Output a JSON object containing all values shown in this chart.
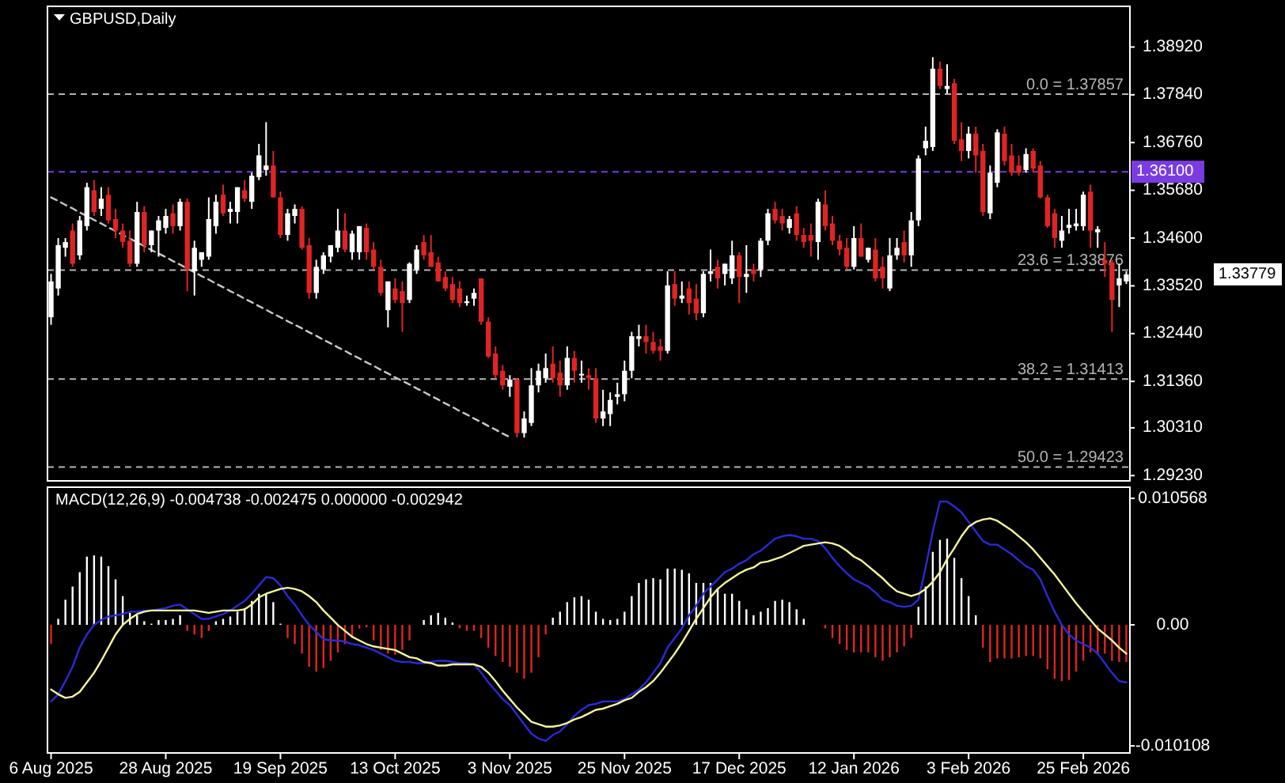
{
  "chart_data": [
    {
      "type": "candlestick",
      "title": "GBPUSD,Daily",
      "tick_labels": "y",
      "categories": [
        null,
        null,
        null,
        null,
        null,
        null,
        null,
        null,
        null,
        null,
        null,
        null,
        null,
        null,
        null,
        null,
        null,
        null,
        null,
        null,
        null,
        null,
        null,
        null,
        null,
        null,
        null,
        null,
        null,
        null,
        null,
        null,
        null,
        null,
        null,
        null,
        null,
        null,
        null,
        null,
        null,
        null,
        null,
        null,
        null,
        null,
        null,
        null,
        null,
        null,
        null,
        null,
        null,
        null,
        null,
        null,
        null,
        null,
        null,
        null,
        null,
        null,
        null,
        null,
        null,
        null,
        null,
        null,
        null,
        null,
        null,
        null,
        null,
        null,
        null,
        null,
        null,
        null,
        null,
        null,
        null,
        null,
        null,
        null,
        null,
        null,
        null,
        null,
        null,
        null,
        null,
        null,
        null,
        null,
        null,
        null,
        null,
        null,
        null,
        null,
        null,
        null,
        null,
        null,
        null,
        null,
        null,
        null,
        null,
        null,
        null,
        null,
        null,
        null,
        null,
        null,
        null,
        null,
        null,
        null,
        null,
        null,
        null,
        null,
        null,
        null,
        null,
        null,
        null,
        null,
        null,
        null,
        null,
        null,
        null,
        null,
        null,
        null,
        null,
        null,
        null,
        null,
        null,
        null,
        null,
        null,
        null,
        null,
        null,
        null,
        null
      ],
      "ohlc": [
        [
          1.3281,
          1.3379,
          1.3264,
          1.3362
        ],
        [
          1.3346,
          1.346,
          1.333,
          1.3444
        ],
        [
          1.3438,
          1.346,
          1.3418,
          1.3451
        ],
        [
          1.3477,
          1.3493,
          1.3395,
          1.3402
        ],
        [
          1.3421,
          1.351,
          1.3411,
          1.35
        ],
        [
          1.3487,
          1.3585,
          1.3477,
          1.3575
        ],
        [
          1.3568,
          1.3591,
          1.351,
          1.3519
        ],
        [
          1.3526,
          1.3575,
          1.351,
          1.3549
        ],
        [
          1.3558,
          1.3575,
          1.3493,
          1.35
        ],
        [
          1.3503,
          1.3526,
          1.346,
          1.3477
        ],
        [
          1.3477,
          1.3493,
          1.3438,
          1.3451
        ],
        [
          1.3454,
          1.3477,
          1.3395,
          1.3402
        ],
        [
          1.3402,
          1.3542,
          1.3395,
          1.3519
        ],
        [
          1.3519,
          1.3532,
          1.3428,
          1.3444
        ],
        [
          1.3444,
          1.3477,
          1.3428,
          1.3477
        ],
        [
          1.3477,
          1.351,
          1.3418,
          1.35
        ],
        [
          1.3483,
          1.3526,
          1.347,
          1.351
        ],
        [
          1.3516,
          1.3536,
          1.347,
          1.3487
        ],
        [
          1.3487,
          1.3549,
          1.3477,
          1.3542
        ],
        [
          1.3542,
          1.3549,
          1.334,
          1.3389
        ],
        [
          1.3385,
          1.3454,
          1.333,
          1.3438
        ],
        [
          1.3411,
          1.3428,
          1.3395,
          1.3428
        ],
        [
          1.3418,
          1.3552,
          1.3411,
          1.3503
        ],
        [
          1.3487,
          1.3558,
          1.347,
          1.3542
        ],
        [
          1.3558,
          1.3581,
          1.351,
          1.3516
        ],
        [
          1.3519,
          1.3542,
          1.3493,
          1.3526
        ],
        [
          1.3519,
          1.3575,
          1.3493,
          1.3575
        ],
        [
          1.3568,
          1.3591,
          1.3542,
          1.3549
        ],
        [
          1.3542,
          1.3608,
          1.3526,
          1.3601
        ],
        [
          1.3598,
          1.3673,
          1.3591,
          1.3647
        ],
        [
          1.3614,
          1.3722,
          1.3601,
          1.3624
        ],
        [
          1.3624,
          1.3657,
          1.3552,
          1.3552
        ],
        [
          1.3552,
          1.3565,
          1.346,
          1.3467
        ],
        [
          1.3467,
          1.3526,
          1.3454,
          1.3516
        ],
        [
          1.351,
          1.3536,
          1.3493,
          1.3526
        ],
        [
          1.3526,
          1.3532,
          1.3434,
          1.3438
        ],
        [
          1.3444,
          1.346,
          1.3323,
          1.3336
        ],
        [
          1.3336,
          1.3411,
          1.3323,
          1.3395
        ],
        [
          1.3389,
          1.3428,
          1.3379,
          1.3421
        ],
        [
          1.3418,
          1.3444,
          1.3405,
          1.3444
        ],
        [
          1.3438,
          1.3526,
          1.3428,
          1.3477
        ],
        [
          1.3477,
          1.3516,
          1.3428,
          1.3434
        ],
        [
          1.3428,
          1.3477,
          1.3411,
          1.347
        ],
        [
          1.3428,
          1.3487,
          1.3411,
          1.3487
        ],
        [
          1.3483,
          1.3493,
          1.3411,
          1.3428
        ],
        [
          1.3434,
          1.3451,
          1.3389,
          1.3395
        ],
        [
          1.3395,
          1.3411,
          1.333,
          1.3336
        ],
        [
          1.3297,
          1.3362,
          1.3258,
          1.3362
        ],
        [
          1.3346,
          1.3369,
          1.3313,
          1.332
        ],
        [
          1.334,
          1.3362,
          1.3248,
          1.3313
        ],
        [
          1.332,
          1.3405,
          1.3313,
          1.3402
        ],
        [
          1.3389,
          1.3444,
          1.3379,
          1.3434
        ],
        [
          1.3451,
          1.3467,
          1.3411,
          1.3421
        ],
        [
          1.3428,
          1.3467,
          1.3395,
          1.3395
        ],
        [
          1.3405,
          1.3418,
          1.3362,
          1.3362
        ],
        [
          1.3372,
          1.3385,
          1.334,
          1.3346
        ],
        [
          1.3356,
          1.3372,
          1.3313,
          1.332
        ],
        [
          1.3346,
          1.3362,
          1.3304,
          1.3313
        ],
        [
          1.3313,
          1.333,
          1.3307,
          1.3317
        ],
        [
          1.3323,
          1.3346,
          1.3307,
          1.3336
        ],
        [
          1.3369,
          1.3369,
          1.3264,
          1.3271
        ],
        [
          1.3271,
          1.3281,
          1.3189,
          1.3192
        ],
        [
          1.3199,
          1.3215,
          1.3143,
          1.315
        ],
        [
          1.316,
          1.3173,
          1.3117,
          1.3127
        ],
        [
          1.3124,
          1.315,
          1.3101,
          1.314
        ],
        [
          1.314,
          1.3143,
          1.3009,
          1.3019
        ],
        [
          1.3019,
          1.3068,
          1.3009,
          1.3052
        ],
        [
          1.3042,
          1.3166,
          1.3035,
          1.3127
        ],
        [
          1.3127,
          1.3176,
          1.3111,
          1.316
        ],
        [
          1.3143,
          1.3199,
          1.3133,
          1.3166
        ],
        [
          1.3176,
          1.3215,
          1.3133,
          1.3143
        ],
        [
          1.3156,
          1.3183,
          1.3101,
          1.3127
        ],
        [
          1.3127,
          1.3215,
          1.3117,
          1.3189
        ],
        [
          1.3189,
          1.3205,
          1.3133,
          1.316
        ],
        [
          1.315,
          1.3183,
          1.3133,
          1.3153
        ],
        [
          1.315,
          1.3166,
          1.3117,
          1.3143
        ],
        [
          1.3143,
          1.3166,
          1.3042,
          1.3052
        ],
        [
          1.3052,
          1.3117,
          1.3035,
          1.3068
        ],
        [
          1.3062,
          1.3111,
          1.3035,
          1.3094
        ],
        [
          1.3101,
          1.3133,
          1.3084,
          1.3107
        ],
        [
          1.3107,
          1.3183,
          1.3091,
          1.316
        ],
        [
          1.316,
          1.3248,
          1.3143,
          1.3238
        ],
        [
          1.3232,
          1.3264,
          1.3215,
          1.3238
        ],
        [
          1.3238,
          1.3264,
          1.3199,
          1.3225
        ],
        [
          1.3225,
          1.3248,
          1.3199,
          1.3205
        ],
        [
          1.3215,
          1.3232,
          1.3183,
          1.3205
        ],
        [
          1.3205,
          1.3385,
          1.3199,
          1.3353
        ],
        [
          1.3356,
          1.3385,
          1.3307,
          1.3323
        ],
        [
          1.3323,
          1.3362,
          1.3313,
          1.333
        ],
        [
          1.3346,
          1.3362,
          1.3287,
          1.3313
        ],
        [
          1.3323,
          1.3356,
          1.3274,
          1.329
        ],
        [
          1.329,
          1.3385,
          1.3281,
          1.3379
        ],
        [
          1.3379,
          1.3434,
          1.3362,
          1.3385
        ],
        [
          1.3395,
          1.3411,
          1.3346,
          1.3369
        ],
        [
          1.3379,
          1.3402,
          1.3353,
          1.3402
        ],
        [
          1.3369,
          1.3454,
          1.3356,
          1.3421
        ],
        [
          1.3421,
          1.3428,
          1.3313,
          1.3372
        ],
        [
          1.3372,
          1.3444,
          1.3336,
          1.3379
        ],
        [
          1.3389,
          1.3402,
          1.3362,
          1.3379
        ],
        [
          1.3389,
          1.346,
          1.3372,
          1.3454
        ],
        [
          1.3454,
          1.3526,
          1.3444,
          1.3516
        ],
        [
          1.3526,
          1.3542,
          1.3493,
          1.35
        ],
        [
          1.351,
          1.3526,
          1.3477,
          1.3493
        ],
        [
          1.3483,
          1.351,
          1.347,
          1.3503
        ],
        [
          1.3516,
          1.3532,
          1.3454,
          1.3467
        ],
        [
          1.3467,
          1.3483,
          1.3438,
          1.3451
        ],
        [
          1.3467,
          1.3493,
          1.3418,
          1.3454
        ],
        [
          1.3451,
          1.3549,
          1.3411,
          1.3542
        ],
        [
          1.3536,
          1.3568,
          1.3477,
          1.3487
        ],
        [
          1.3493,
          1.351,
          1.3444,
          1.3454
        ],
        [
          1.3454,
          1.3467,
          1.3421,
          1.3434
        ],
        [
          1.3438,
          1.346,
          1.3389,
          1.3395
        ],
        [
          1.3395,
          1.3487,
          1.3389,
          1.346
        ],
        [
          1.346,
          1.3493,
          1.3418,
          1.3418
        ],
        [
          1.3411,
          1.3438,
          1.3405,
          1.3438
        ],
        [
          1.3434,
          1.346,
          1.3362,
          1.3369
        ],
        [
          1.3395,
          1.3418,
          1.3346,
          1.3369
        ],
        [
          1.3346,
          1.346,
          1.334,
          1.3421
        ],
        [
          1.3421,
          1.346,
          1.3411,
          1.3438
        ],
        [
          1.3451,
          1.3477,
          1.3405,
          1.3421
        ],
        [
          1.3421,
          1.3519,
          1.3395,
          1.35
        ],
        [
          1.35,
          1.3647,
          1.3487,
          1.364
        ],
        [
          1.3663,
          1.3712,
          1.3647,
          1.368
        ],
        [
          1.3666,
          1.3869,
          1.3657,
          1.3843
        ],
        [
          1.3843,
          1.3859,
          1.3797,
          1.3804
        ],
        [
          1.3797,
          1.3853,
          1.3787,
          1.3804
        ],
        [
          1.381,
          1.382,
          1.3673,
          1.368
        ],
        [
          1.3683,
          1.3722,
          1.3634,
          1.3657
        ],
        [
          1.3657,
          1.3712,
          1.364,
          1.3696
        ],
        [
          1.3696,
          1.3712,
          1.3608,
          1.3647
        ],
        [
          1.3657,
          1.3673,
          1.351,
          1.3519
        ],
        [
          1.3516,
          1.3624,
          1.3503,
          1.3608
        ],
        [
          1.3585,
          1.3706,
          1.3575,
          1.3699
        ],
        [
          1.3696,
          1.3712,
          1.3624,
          1.3634
        ],
        [
          1.3647,
          1.3673,
          1.3601,
          1.3608
        ],
        [
          1.3624,
          1.3647,
          1.3601,
          1.3608
        ],
        [
          1.3614,
          1.3663,
          1.3608,
          1.365
        ],
        [
          1.3657,
          1.3663,
          1.3608,
          1.3617
        ],
        [
          1.3624,
          1.3634,
          1.3549,
          1.3552
        ],
        [
          1.3552,
          1.3558,
          1.3483,
          1.3487
        ],
        [
          1.3516,
          1.3526,
          1.3438,
          1.346
        ],
        [
          1.3454,
          1.351,
          1.3438,
          1.3477
        ],
        [
          1.3483,
          1.3526,
          1.347,
          1.349
        ],
        [
          1.3487,
          1.3526,
          1.3477,
          1.3493
        ],
        [
          1.3487,
          1.3565,
          1.3477,
          1.3558
        ],
        [
          1.3565,
          1.3581,
          1.3438,
          1.3477
        ],
        [
          1.3473,
          1.3487,
          1.3438,
          1.348
        ],
        [
          1.3411,
          1.3451,
          1.3372,
          1.3402
        ],
        [
          1.3405,
          1.3411,
          1.3248,
          1.332
        ],
        [
          1.3353,
          1.3402,
          1.3304,
          1.3369
        ],
        [
          1.3362,
          1.3385,
          1.3356,
          1.3378
        ]
      ],
      "colors": [
        "#ffffff",
        "#ffffff",
        "#ffffff",
        "#e02424",
        "#ffffff",
        "#ffffff",
        "#e02424",
        "#ffffff",
        "#e02424",
        "#e02424",
        "#e02424",
        "#e02424",
        "#ffffff",
        "#e02424",
        "#ffffff",
        "#ffffff",
        "#ffffff",
        "#e02424",
        "#ffffff",
        "#e02424",
        "#ffffff",
        "#ffffff",
        "#ffffff",
        "#ffffff",
        "#e02424",
        "#ffffff",
        "#ffffff",
        "#e02424",
        "#ffffff",
        "#ffffff",
        "#ffffff",
        "#e02424",
        "#e02424",
        "#ffffff",
        "#ffffff",
        "#e02424",
        "#e02424",
        "#ffffff",
        "#ffffff",
        "#ffffff",
        "#ffffff",
        "#e02424",
        "#ffffff",
        "#ffffff",
        "#e02424",
        "#e02424",
        "#e02424",
        "#ffffff",
        "#e02424",
        "#e02424",
        "#ffffff",
        "#ffffff",
        "#e02424",
        "#e02424",
        "#e02424",
        "#e02424",
        "#e02424",
        "#e02424",
        "#ffffff",
        "#ffffff",
        "#e02424",
        "#e02424",
        "#e02424",
        "#e02424",
        "#ffffff",
        "#e02424",
        "#ffffff",
        "#ffffff",
        "#ffffff",
        "#ffffff",
        "#e02424",
        "#e02424",
        "#ffffff",
        "#e02424",
        "#ffffff",
        "#e02424",
        "#e02424",
        "#ffffff",
        "#ffffff",
        "#ffffff",
        "#ffffff",
        "#ffffff",
        "#ffffff",
        "#e02424",
        "#e02424",
        "#e02424",
        "#ffffff",
        "#e02424",
        "#ffffff",
        "#e02424",
        "#e02424",
        "#ffffff",
        "#ffffff",
        "#e02424",
        "#ffffff",
        "#ffffff",
        "#e02424",
        "#ffffff",
        "#e02424",
        "#ffffff",
        "#ffffff",
        "#e02424",
        "#e02424",
        "#ffffff",
        "#e02424",
        "#e02424",
        "#e02424",
        "#ffffff",
        "#e02424",
        "#e02424",
        "#e02424",
        "#e02424",
        "#ffffff",
        "#e02424",
        "#ffffff",
        "#e02424",
        "#e02424",
        "#ffffff",
        "#ffffff",
        "#e02424",
        "#ffffff",
        "#ffffff",
        "#ffffff",
        "#ffffff",
        "#e02424",
        "#ffffff",
        "#e02424",
        "#e02424",
        "#ffffff",
        "#e02424",
        "#e02424",
        "#ffffff",
        "#ffffff",
        "#e02424",
        "#e02424",
        "#e02424",
        "#ffffff",
        "#e02424",
        "#e02424",
        "#e02424",
        "#e02424",
        "#ffffff",
        "#ffffff",
        "#ffffff",
        "#ffffff",
        "#e02424",
        "#ffffff",
        "#e02424",
        "#e02424",
        "#ffffff",
        "#ffffff"
      ],
      "series": [
        {
          "type": "line",
          "line_style": "dashed",
          "color": "#c8c8c8",
          "values": [
            1.3552,
            1.3544,
            1.3535,
            1.3527,
            1.3518,
            1.351,
            1.3501,
            1.3493,
            1.3484,
            1.3476,
            1.3467,
            1.3459,
            1.345,
            1.3442,
            1.3433,
            1.3425,
            1.3417,
            1.3408,
            1.34,
            1.3391,
            1.3383,
            1.3374,
            1.3366,
            1.3357,
            1.3349,
            1.334,
            1.3332,
            1.3323,
            1.3315,
            1.3306,
            1.3298,
            1.3289,
            1.3281,
            1.3272,
            1.3264,
            1.3256,
            1.3247,
            1.3239,
            1.323,
            1.3222,
            1.3213,
            1.3205,
            1.3196,
            1.3188,
            1.3179,
            1.3171,
            1.3162,
            1.3154,
            1.3145,
            1.3137,
            1.3129,
            1.312,
            1.3112,
            1.3103,
            1.3095,
            1.3086,
            1.3078,
            1.3069,
            1.3061,
            1.3052,
            1.3044,
            1.3035,
            1.3027,
            1.3018,
            1.301,
            null,
            null,
            null,
            null,
            null,
            null,
            null,
            null,
            null,
            null,
            null,
            null,
            null,
            null,
            null,
            null,
            null,
            null,
            null,
            null,
            null,
            null,
            null,
            null,
            null,
            null,
            null,
            null,
            null,
            null,
            null,
            null,
            null,
            null,
            null,
            null,
            null,
            null,
            null,
            null,
            null,
            null,
            null,
            null,
            null,
            null,
            null,
            null,
            null,
            null,
            null,
            null,
            null,
            null,
            null,
            null,
            null,
            null,
            null,
            null,
            null,
            null,
            null,
            null,
            null,
            null,
            null,
            null,
            null,
            null,
            null,
            null,
            null,
            null,
            null,
            null,
            null,
            null,
            null,
            null,
            null,
            null,
            null,
            null,
            null,
            null
          ]
        }
      ],
      "ylim": [
        1.2911,
        1.3984
      ],
      "yticks": [
        {
          "value": 1.3892,
          "label": "1.38920"
        },
        {
          "value": 1.3784,
          "label": "1.37840"
        },
        {
          "value": 1.3676,
          "label": "1.36760"
        },
        {
          "value": 1.3568,
          "label": "1.35680"
        },
        {
          "value": 1.346,
          "label": "1.34600"
        },
        {
          "value": 1.3352,
          "label": "1.33520"
        },
        {
          "value": 1.3244,
          "label": "1.32440"
        },
        {
          "value": 1.3136,
          "label": "1.31360"
        },
        {
          "value": 1.3031,
          "label": "1.30310"
        },
        {
          "value": 1.2923,
          "label": "1.29230"
        }
      ],
      "ref_lines": [
        {
          "axis": "y",
          "value": 1.37857,
          "label": "0.0 = 1.37857",
          "color": "#b4b4b4",
          "line_style": "dashed"
        },
        {
          "axis": "y",
          "value": 1.33876,
          "label": "23.6 = 1.33876",
          "color": "#b4b4b4",
          "line_style": "dashed"
        },
        {
          "axis": "y",
          "value": 1.31413,
          "label": "38.2 = 1.31413",
          "color": "#b4b4b4",
          "line_style": "dashed"
        },
        {
          "axis": "y",
          "value": 1.29423,
          "label": "50.0 = 1.29423",
          "color": "#b4b4b4",
          "line_style": "dashed"
        },
        {
          "axis": "y",
          "value": 1.361,
          "label": "1.36100",
          "color": "#7a3ce0",
          "line_style": "dashed"
        }
      ],
      "annotations": [
        "1.33779"
      ]
    },
    {
      "type": "bar",
      "title": "MACD(12,26,9) -0.004738 -0.002475 0.000000 -0.002942",
      "categories": [
        "6 Aug 2025",
        null,
        null,
        null,
        null,
        null,
        null,
        null,
        null,
        null,
        null,
        null,
        null,
        null,
        null,
        null,
        "28 Aug 2025",
        null,
        null,
        null,
        null,
        null,
        null,
        null,
        null,
        null,
        null,
        null,
        null,
        null,
        null,
        null,
        "19 Sep 2025",
        null,
        null,
        null,
        null,
        null,
        null,
        null,
        null,
        null,
        null,
        null,
        null,
        null,
        null,
        null,
        "13 Oct 2025",
        null,
        null,
        null,
        null,
        null,
        null,
        null,
        null,
        null,
        null,
        null,
        null,
        null,
        null,
        null,
        "3 Nov 2025",
        null,
        null,
        null,
        null,
        null,
        null,
        null,
        null,
        null,
        null,
        null,
        null,
        null,
        null,
        null,
        "25 Nov 2025",
        null,
        null,
        null,
        null,
        null,
        null,
        null,
        null,
        null,
        null,
        null,
        null,
        null,
        null,
        null,
        "17 Dec 2025",
        null,
        null,
        null,
        null,
        null,
        null,
        null,
        null,
        null,
        null,
        null,
        null,
        null,
        null,
        null,
        "12 Jan 2026",
        null,
        null,
        null,
        null,
        null,
        null,
        null,
        null,
        null,
        null,
        null,
        null,
        null,
        null,
        null,
        "3 Feb 2026",
        null,
        null,
        null,
        null,
        null,
        null,
        null,
        null,
        null,
        null,
        null,
        null,
        null,
        null,
        null,
        "25 Feb 2026",
        null,
        null,
        null,
        null,
        null,
        null
      ],
      "series": [
        {
          "values": [
            -0.0016,
            0.0005,
            0.0021,
            0.0032,
            0.0044,
            0.0057,
            0.0058,
            0.0057,
            0.0049,
            0.0038,
            0.0024,
            0.001,
            0.0008,
            0.0003,
            0.0001,
            0.0004,
            0.0004,
            0.0005,
            0.0008,
            -0.0005,
            -0.0008,
            -0.0011,
            -0.0005,
            0.0003,
            0.0005,
            0.0007,
            0.0011,
            0.0014,
            0.002,
            0.0026,
            0.0026,
            0.0019,
            0.0001,
            -0.0011,
            -0.0016,
            -0.0024,
            -0.0035,
            -0.0039,
            -0.0036,
            -0.003,
            -0.0023,
            -0.0016,
            -0.0011,
            -0.0003,
            -0.0002,
            -0.0013,
            -0.0021,
            -0.0024,
            -0.0025,
            -0.0021,
            -0.0013,
            null,
            0.0004,
            0.0008,
            0.001,
            0.0006,
            0.0002,
            -0.0003,
            -0.0005,
            -0.0005,
            -0.0011,
            -0.0019,
            -0.0026,
            -0.0031,
            -0.0035,
            -0.004,
            -0.0045,
            -0.004,
            -0.0027,
            -0.0008,
            0.0006,
            0.0011,
            0.0019,
            0.0023,
            0.0024,
            0.0021,
            0.0011,
            0.0005,
            0.0004,
            0.0005,
            0.0011,
            0.0024,
            0.0035,
            0.0038,
            0.0039,
            0.0038,
            0.0047,
            0.0047,
            0.0046,
            0.0043,
            0.0035,
            0.0035,
            0.0035,
            0.003,
            0.0026,
            0.0026,
            0.002,
            0.0013,
            0.0008,
            0.0011,
            0.0014,
            0.002,
            0.0021,
            0.0019,
            0.0013,
            0.0005,
            0,
            0,
            -0.0003,
            -0.0011,
            -0.0016,
            -0.0021,
            -0.0023,
            -0.0023,
            -0.0023,
            -0.0027,
            -0.003,
            -0.0027,
            -0.0023,
            -0.0018,
            -0.0011,
            0.0015,
            0.0032,
            0.0061,
            0.0071,
            0.0072,
            0.0056,
            0.0039,
            0.0024,
            0.0008,
            -0.0019,
            -0.0031,
            -0.0028,
            -0.0028,
            -0.0028,
            -0.0027,
            -0.0026,
            -0.0026,
            -0.0028,
            -0.0037,
            -0.0045,
            -0.0047,
            -0.0046,
            -0.0039,
            -0.003,
            -0.0023,
            -0.0025,
            -0.0024,
            -0.003,
            -0.0031,
            -0.0031
          ],
          "colors": [
            "#e02424",
            "#ffffff",
            "#ffffff",
            "#ffffff",
            "#ffffff",
            "#ffffff",
            "#ffffff",
            "#ffffff",
            "#ffffff",
            "#ffffff",
            "#ffffff",
            "#ffffff",
            "#ffffff",
            "#ffffff",
            "#ffffff",
            "#ffffff",
            "#ffffff",
            "#ffffff",
            "#ffffff",
            "#e02424",
            "#e02424",
            "#e02424",
            "#e02424",
            "#ffffff",
            "#ffffff",
            "#ffffff",
            "#ffffff",
            "#ffffff",
            "#ffffff",
            "#ffffff",
            "#ffffff",
            "#ffffff",
            "#ffffff",
            "#e02424",
            "#e02424",
            "#e02424",
            "#e02424",
            "#e02424",
            "#e02424",
            "#e02424",
            "#e02424",
            "#e02424",
            "#e02424",
            "#e02424",
            "#e02424",
            "#e02424",
            "#e02424",
            "#e02424",
            "#e02424",
            "#e02424",
            "#e02424",
            null,
            "#ffffff",
            "#ffffff",
            "#ffffff",
            "#ffffff",
            "#ffffff",
            "#e02424",
            "#e02424",
            "#e02424",
            "#e02424",
            "#e02424",
            "#e02424",
            "#e02424",
            "#e02424",
            "#e02424",
            "#e02424",
            "#e02424",
            "#e02424",
            "#e02424",
            "#ffffff",
            "#ffffff",
            "#ffffff",
            "#ffffff",
            "#ffffff",
            "#ffffff",
            "#ffffff",
            "#ffffff",
            "#ffffff",
            "#ffffff",
            "#ffffff",
            "#ffffff",
            "#ffffff",
            "#ffffff",
            "#ffffff",
            "#ffffff",
            "#ffffff",
            "#ffffff",
            "#ffffff",
            "#ffffff",
            "#ffffff",
            "#ffffff",
            "#ffffff",
            "#ffffff",
            "#ffffff",
            "#ffffff",
            "#ffffff",
            "#ffffff",
            "#ffffff",
            "#ffffff",
            "#ffffff",
            "#ffffff",
            "#ffffff",
            "#ffffff",
            "#ffffff",
            "#ffffff",
            "#ffffff",
            "#ffffff",
            "#e02424",
            "#e02424",
            "#e02424",
            "#e02424",
            "#e02424",
            "#e02424",
            "#e02424",
            "#e02424",
            "#e02424",
            "#e02424",
            "#e02424",
            "#e02424",
            "#e02424",
            "#ffffff",
            "#ffffff",
            "#ffffff",
            "#ffffff",
            "#ffffff",
            "#ffffff",
            "#ffffff",
            "#ffffff",
            "#ffffff",
            "#e02424",
            "#e02424",
            "#e02424",
            "#e02424",
            "#e02424",
            "#e02424",
            "#e02424",
            "#e02424",
            "#e02424",
            "#e02424",
            "#e02424",
            "#e02424",
            "#e02424",
            "#e02424",
            "#e02424",
            "#e02424",
            "#e02424",
            "#e02424",
            "#e02424",
            "#e02424",
            "#e02424"
          ]
        },
        {
          "type": "line",
          "color": "#2a2ad6",
          "values": [
            -0.0064,
            -0.0058,
            -0.0047,
            -0.0035,
            -0.0019,
            -0.0008,
            0,
            0.0004,
            0.0007,
            0.0008,
            0.0009,
            0.0011,
            0.0011,
            0.0012,
            0.0012,
            0.0013,
            0.0014,
            0.0016,
            0.0017,
            0.0013,
            0.0009,
            0.0005,
            0.0005,
            0.0007,
            0.0009,
            0.0012,
            0.0016,
            0.002,
            0.0026,
            0.0033,
            0.004,
            0.0039,
            0.0033,
            0.0024,
            0.0017,
            0.0008,
            0,
            -0.0006,
            -0.0012,
            -0.0013,
            -0.0013,
            -0.0014,
            -0.0016,
            -0.0017,
            -0.0019,
            -0.0021,
            -0.0024,
            -0.0027,
            -0.003,
            -0.0031,
            -0.0031,
            -0.0032,
            -0.0032,
            -0.0031,
            -0.003,
            -0.003,
            -0.0031,
            -0.0032,
            -0.0032,
            -0.0033,
            -0.004,
            -0.0048,
            -0.0055,
            -0.0062,
            -0.0067,
            -0.0075,
            -0.0083,
            -0.0091,
            -0.0095,
            -0.0097,
            -0.0092,
            -0.0089,
            -0.0083,
            -0.0076,
            -0.0071,
            -0.0067,
            -0.0066,
            -0.0064,
            -0.0064,
            -0.0064,
            -0.0062,
            -0.0058,
            -0.0054,
            -0.0048,
            -0.004,
            -0.0032,
            -0.0019,
            -0.0011,
            -0.0003,
            0.0008,
            0.0016,
            0.0026,
            0.0032,
            0.0038,
            0.0044,
            0.0047,
            0.0051,
            0.0054,
            0.0059,
            0.0062,
            0.0067,
            0.0072,
            0.0074,
            0.0075,
            0.0074,
            0.0072,
            0.0072,
            0.007,
            0.0064,
            0.0056,
            0.0049,
            0.0043,
            0.0038,
            0.0035,
            0.0032,
            0.0027,
            0.0021,
            0.0019,
            0.0016,
            0.0015,
            0.0016,
            0.0021,
            0.0048,
            0.0078,
            0.0103,
            0.0103,
            0.0099,
            0.0094,
            0.0086,
            0.0078,
            0.007,
            0.0067,
            0.0067,
            0.0063,
            0.0059,
            0.0054,
            0.0049,
            0.0046,
            0.0038,
            0.0024,
            0.0011,
            0,
            -0.0008,
            -0.0013,
            -0.0016,
            -0.0019,
            -0.0024,
            -0.0032,
            -0.004,
            -0.0047,
            -0.0048
          ]
        },
        {
          "type": "line",
          "color": "#f5f5a0",
          "values": [
            -0.0054,
            -0.0058,
            -0.0061,
            -0.006,
            -0.0056,
            -0.0048,
            -0.004,
            -0.003,
            -0.0019,
            -0.0008,
            0,
            0.0005,
            0.0009,
            0.0011,
            0.0012,
            0.0012,
            0.0012,
            0.0012,
            0.0012,
            0.0012,
            0.0012,
            0.0011,
            0.001,
            0.0011,
            0.0012,
            0.0012,
            0.0012,
            0.0013,
            0.0017,
            0.0023,
            0.0026,
            0.0028,
            0.003,
            0.0031,
            0.003,
            0.0028,
            0.0024,
            0.0019,
            0.0012,
            0.0006,
            0,
            -0.0005,
            -0.001,
            -0.0013,
            -0.0016,
            -0.0018,
            -0.0019,
            -0.002,
            -0.0021,
            -0.0024,
            -0.0027,
            -0.0028,
            -0.0031,
            -0.0032,
            -0.0034,
            -0.0034,
            -0.0033,
            -0.0033,
            -0.0033,
            -0.0033,
            -0.0035,
            -0.004,
            -0.0047,
            -0.0055,
            -0.0062,
            -0.0069,
            -0.0075,
            -0.0081,
            -0.0083,
            -0.0085,
            -0.0085,
            -0.0084,
            -0.0082,
            -0.0079,
            -0.0077,
            -0.0074,
            -0.0071,
            -0.007,
            -0.0068,
            -0.0066,
            -0.0063,
            -0.0061,
            -0.0056,
            -0.0052,
            -0.0047,
            -0.004,
            -0.0032,
            -0.0024,
            -0.0015,
            -0.0005,
            0.0005,
            0.0014,
            0.0023,
            0.003,
            0.0035,
            0.0039,
            0.0043,
            0.0046,
            0.0048,
            0.0052,
            0.0053,
            0.0055,
            0.0057,
            0.006,
            0.0063,
            0.0066,
            0.0067,
            0.0068,
            0.0069,
            0.0068,
            0.0066,
            0.0062,
            0.0057,
            0.0054,
            0.0049,
            0.0044,
            0.0039,
            0.0033,
            0.0028,
            0.0026,
            0.0024,
            0.0026,
            0.003,
            0.0036,
            0.0044,
            0.0055,
            0.0064,
            0.0074,
            0.0082,
            0.0086,
            0.0088,
            0.0089,
            0.0087,
            0.0083,
            0.0079,
            0.0074,
            0.0069,
            0.0063,
            0.0056,
            0.0049,
            0.0042,
            0.0034,
            0.0026,
            0.0018,
            0.0011,
            0.0004,
            -0.0003,
            -0.0008,
            -0.0013,
            -0.0019,
            -0.0024
          ]
        }
      ],
      "ylim": [
        -0.0107,
        0.0115
      ],
      "yticks": [
        {
          "value": 0.010568,
          "label": "0.010568"
        },
        {
          "value": 0,
          "label": "0.00"
        },
        {
          "value": -0.010108,
          "label": "-0.010108"
        }
      ]
    }
  ]
}
